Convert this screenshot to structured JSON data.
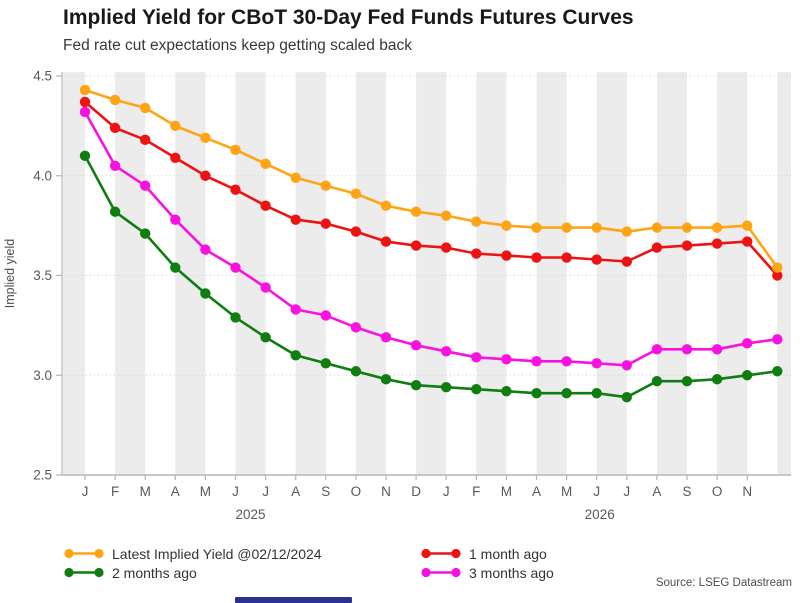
{
  "header": {
    "title": "Implied Yield for CBoT 30-Day Fed Funds Futures Curves",
    "subtitle": "Fed rate cut expectations keep getting scaled back"
  },
  "source_note": "Source: LSEG Datastream",
  "colors": {
    "latest": "#FFA415",
    "one_month": "#EC1313",
    "two_months": "#0F7D0F",
    "three_months": "#F911E0",
    "stripe": "#ECECEC",
    "axis": "#C6C6C6",
    "tick_text": "#595959",
    "bottom_bar": "#2E3192"
  },
  "chart_data": {
    "type": "line",
    "title": "Implied Yield for CBoT 30-Day Fed Funds Futures Curves",
    "subtitle": "Fed rate cut expectations keep getting scaled back",
    "ylabel": "Implied yield",
    "xlabel": "",
    "ylim": [
      2.5,
      4.5
    ],
    "grid": true,
    "legend_position": "bottom",
    "y_ticks": [
      {
        "label": "4.5",
        "value": 4.5
      },
      {
        "label": "4.0",
        "value": 4.0
      },
      {
        "label": "3.5",
        "value": 3.5
      },
      {
        "label": "3.0",
        "value": 3.0
      },
      {
        "label": "2.5",
        "value": 2.5
      }
    ],
    "x_tick_labels": [
      "J",
      "F",
      "M",
      "A",
      "M",
      "J",
      "J",
      "A",
      "S",
      "O",
      "N",
      "D",
      "J",
      "F",
      "M",
      "A",
      "M",
      "J",
      "J",
      "A",
      "S",
      "O",
      "N",
      ""
    ],
    "year_labels": [
      {
        "text": "2025",
        "center_index": 5.5
      },
      {
        "text": "2026",
        "center_index": 17.1
      }
    ],
    "series": [
      {
        "key": "latest",
        "name": "Latest Implied Yield @02/12/2024",
        "color": "#FFA415",
        "values": [
          4.43,
          4.38,
          4.34,
          4.25,
          4.19,
          4.13,
          4.06,
          3.99,
          3.95,
          3.91,
          3.85,
          3.82,
          3.8,
          3.77,
          3.75,
          3.74,
          3.74,
          3.74,
          3.72,
          3.74,
          3.74,
          3.74,
          3.75,
          3.54
        ]
      },
      {
        "key": "one-month-ago",
        "name": "1 month ago",
        "color": "#EC1313",
        "values": [
          4.37,
          4.24,
          4.18,
          4.09,
          4.0,
          3.93,
          3.85,
          3.78,
          3.76,
          3.72,
          3.67,
          3.65,
          3.64,
          3.61,
          3.6,
          3.59,
          3.59,
          3.58,
          3.57,
          3.64,
          3.65,
          3.66,
          3.67,
          3.5
        ]
      },
      {
        "key": "two-months-ago",
        "name": "2 months ago",
        "color": "#0F7D0F",
        "values": [
          4.1,
          3.82,
          3.71,
          3.54,
          3.41,
          3.29,
          3.19,
          3.1,
          3.06,
          3.02,
          2.98,
          2.95,
          2.94,
          2.93,
          2.92,
          2.91,
          2.91,
          2.91,
          2.89,
          2.97,
          2.97,
          2.98,
          3.0,
          3.02
        ]
      },
      {
        "key": "three-months-ago",
        "name": "3 months ago",
        "color": "#F911E0",
        "values": [
          4.32,
          4.05,
          3.95,
          3.78,
          3.63,
          3.54,
          3.44,
          3.33,
          3.3,
          3.24,
          3.19,
          3.15,
          3.12,
          3.09,
          3.08,
          3.07,
          3.07,
          3.06,
          3.05,
          3.13,
          3.13,
          3.13,
          3.16,
          3.18
        ]
      }
    ]
  }
}
